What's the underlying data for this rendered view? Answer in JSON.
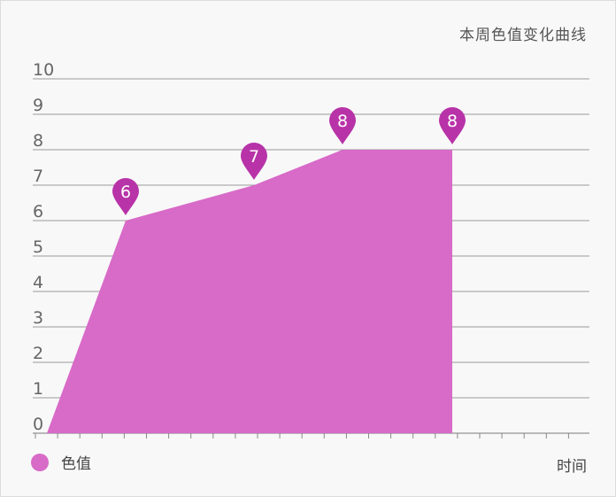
{
  "chart_data": {
    "type": "area",
    "title": "本周色值变化曲线",
    "xlabel": "时间",
    "ylabel": "",
    "ylim": [
      0,
      10
    ],
    "yticks": [
      "0",
      "1",
      "2",
      "3",
      "4",
      "5",
      "6",
      "7",
      "8",
      "9",
      "10"
    ],
    "grid": true,
    "legend_position": "bottom-left",
    "series": [
      {
        "name": "色值",
        "color": "#d86ac8",
        "points": [
          {
            "x": 0,
            "y": 0,
            "label": ""
          },
          {
            "x": 1,
            "y": 6,
            "label": "6"
          },
          {
            "x": 2,
            "y": 7,
            "label": "7"
          },
          {
            "x": 3,
            "y": 8,
            "label": "8"
          },
          {
            "x": 4,
            "y": 8,
            "label": "8"
          }
        ]
      }
    ],
    "marker_color": "#b833a8"
  }
}
